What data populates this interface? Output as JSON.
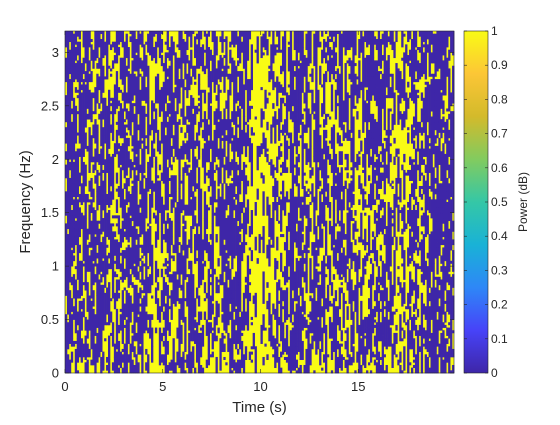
{
  "chart_data": {
    "type": "heatmap",
    "title": "",
    "xlabel": "Time (s)",
    "ylabel": "Frequency (Hz)",
    "xlim": [
      0,
      19.9
    ],
    "ylim": [
      0,
      3.2
    ],
    "xticks": [
      0,
      5,
      10,
      15
    ],
    "xtick_labels": [
      "0",
      "5",
      "10",
      "15"
    ],
    "yticks": [
      0,
      0.5,
      1,
      1.5,
      2,
      2.5,
      3
    ],
    "ytick_labels": [
      "0",
      "0.5",
      "1",
      "1.5",
      "2",
      "2.5",
      "3"
    ],
    "colorbar": {
      "label": "Power (dB)",
      "limits": [
        0,
        1
      ],
      "ticks": [
        0,
        0.1,
        0.2,
        0.3,
        0.4,
        0.5,
        0.6,
        0.7,
        0.8,
        0.9,
        1
      ],
      "tick_labels": [
        "0",
        "0.1",
        "0.2",
        "0.3",
        "0.4",
        "0.5",
        "0.6",
        "0.7",
        "0.8",
        "0.9",
        "1"
      ],
      "colormap": "parula",
      "colors": [
        "#3e26a8",
        "#4743f8",
        "#2e87f7",
        "#19b2d6",
        "#35c7a6",
        "#82cb5f",
        "#d3ba2b",
        "#fcc636",
        "#f9fb15"
      ]
    },
    "value_levels": [
      0,
      1
    ],
    "columns_per_second": 10,
    "rows_per_hz": 40,
    "low_power_fraction_by_time": [
      [
        0.0,
        0.55
      ],
      [
        0.8,
        0.5
      ],
      [
        1.3,
        0.45
      ],
      [
        1.7,
        0.55
      ],
      [
        2.2,
        0.45
      ],
      [
        2.6,
        0.38
      ],
      [
        3.1,
        0.5
      ],
      [
        3.6,
        0.62
      ],
      [
        4.0,
        0.5
      ],
      [
        4.5,
        0.25
      ],
      [
        4.9,
        0.35
      ],
      [
        5.4,
        0.45
      ],
      [
        5.9,
        0.4
      ],
      [
        6.4,
        0.5
      ],
      [
        6.9,
        0.42
      ],
      [
        7.4,
        0.35
      ],
      [
        7.9,
        0.3
      ],
      [
        8.4,
        0.42
      ],
      [
        8.9,
        0.58
      ],
      [
        9.3,
        0.3
      ],
      [
        9.8,
        0.1
      ],
      [
        10.3,
        0.15
      ],
      [
        10.8,
        0.25
      ],
      [
        11.4,
        0.45
      ],
      [
        11.9,
        0.55
      ],
      [
        12.4,
        0.3
      ],
      [
        12.9,
        0.45
      ],
      [
        13.5,
        0.4
      ],
      [
        14.0,
        0.38
      ],
      [
        14.5,
        0.42
      ],
      [
        15.0,
        0.3
      ],
      [
        15.6,
        0.35
      ],
      [
        16.2,
        0.48
      ],
      [
        16.8,
        0.35
      ],
      [
        17.4,
        0.25
      ],
      [
        17.9,
        0.4
      ],
      [
        18.4,
        0.5
      ],
      [
        18.9,
        0.6
      ],
      [
        19.4,
        0.5
      ],
      [
        19.9,
        0.45
      ]
    ]
  },
  "ui": {
    "accent_high": "#f9fb15",
    "accent_low": "#3e26a8"
  }
}
